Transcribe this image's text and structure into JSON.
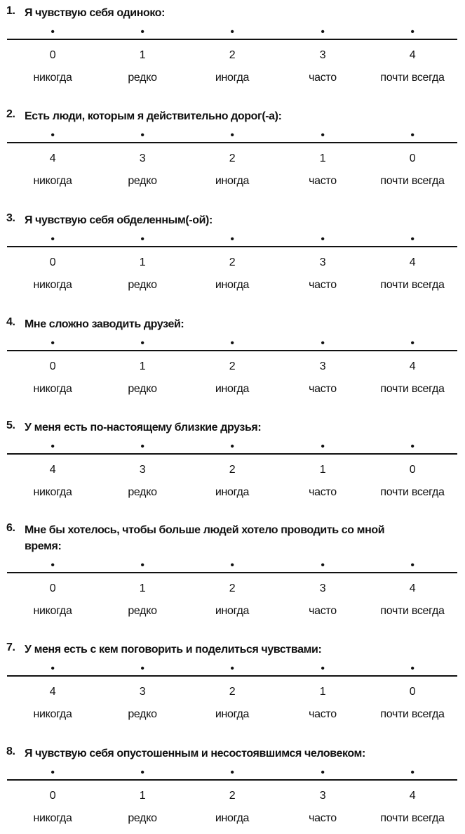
{
  "questions": [
    {
      "number": "1.",
      "text": "Я чувствую себя одиноко:",
      "scores": [
        "0",
        "1",
        "2",
        "3",
        "4"
      ]
    },
    {
      "number": "2.",
      "text": "Есть люди, которым я действительно дорог(-а):",
      "scores": [
        "4",
        "3",
        "2",
        "1",
        "0"
      ]
    },
    {
      "number": "3.",
      "text": "Я чувствую себя обделенным(-ой):",
      "scores": [
        "0",
        "1",
        "2",
        "3",
        "4"
      ]
    },
    {
      "number": "4.",
      "text": "Мне сложно заводить друзей:",
      "scores": [
        "0",
        "1",
        "2",
        "3",
        "4"
      ]
    },
    {
      "number": "5.",
      "text": "У меня есть по-настоящему близкие друзья:",
      "scores": [
        "4",
        "3",
        "2",
        "1",
        "0"
      ]
    },
    {
      "number": "6.",
      "text": "Мне бы хотелось, чтобы больше людей хотело проводить со мной время:",
      "scores": [
        "0",
        "1",
        "2",
        "3",
        "4"
      ]
    },
    {
      "number": "7.",
      "text": "У меня есть с кем поговорить и поделиться чувствами:",
      "scores": [
        "4",
        "3",
        "2",
        "1",
        "0"
      ]
    },
    {
      "number": "8.",
      "text": "Я чувствую себя опустошенным и несостоявшимся человеком:",
      "scores": [
        "0",
        "1",
        "2",
        "3",
        "4"
      ]
    }
  ],
  "options": [
    "никогда",
    "редко",
    "иногда",
    "часто",
    "почти всегда"
  ],
  "dot_symbol": "•"
}
